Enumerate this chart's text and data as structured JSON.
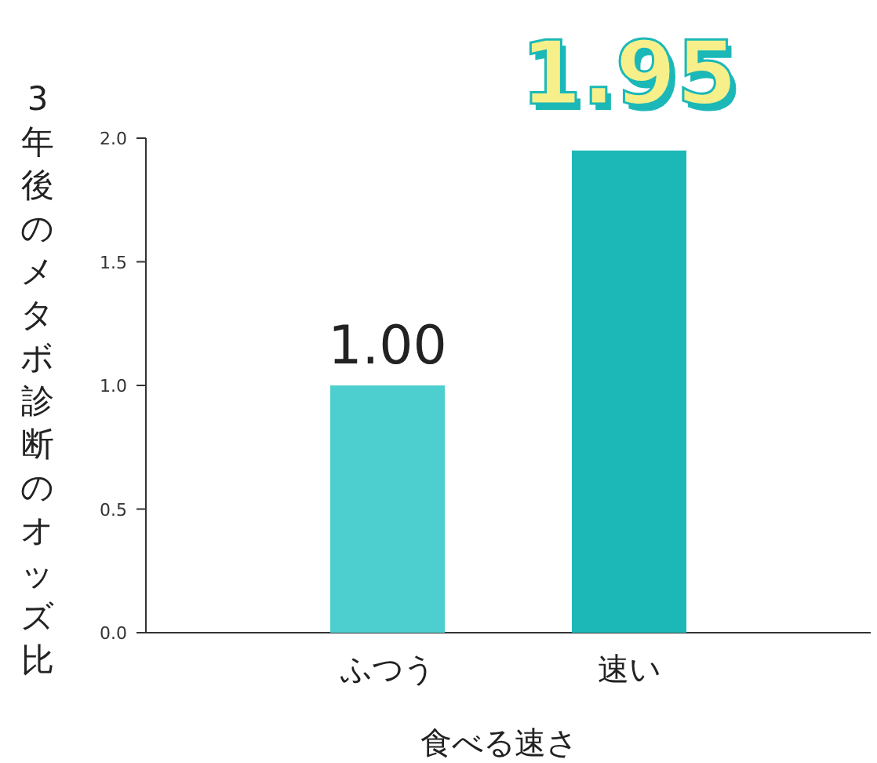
{
  "chart_data": {
    "type": "bar",
    "categories": [
      "ふつう",
      "速い"
    ],
    "values": [
      1.0,
      1.95
    ],
    "colors": [
      "#4ecfcf",
      "#1cb8b8"
    ],
    "value_labels": [
      "1.00",
      "1.95"
    ],
    "xlabel": "食べる速さ",
    "ylabel": "3年後のメタボ診断のオッズ比",
    "ylim": [
      0,
      2.0
    ],
    "yticks": [
      {
        "value": 0,
        "label": "0.0"
      },
      {
        "value": 0.5,
        "label": "0.5"
      },
      {
        "value": 1.0,
        "label": "1.0"
      },
      {
        "value": 1.5,
        "label": "1.5"
      },
      {
        "value": 2.0,
        "label": "2.0"
      }
    ]
  }
}
